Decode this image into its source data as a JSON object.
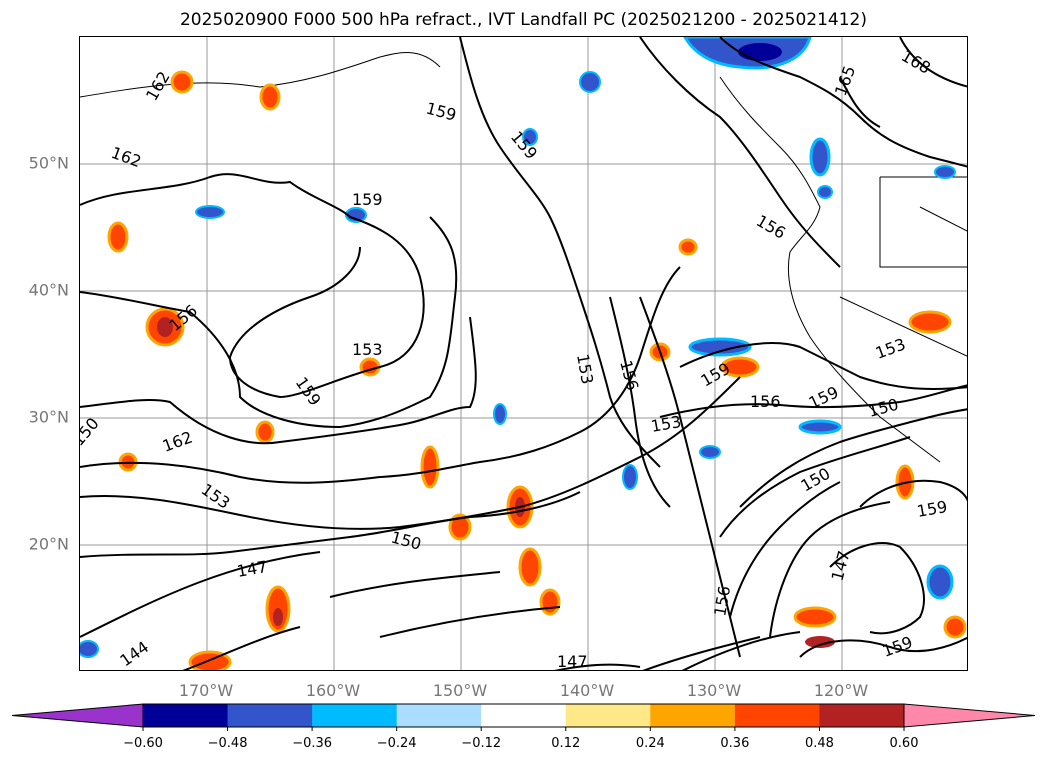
{
  "title": "2025020900 F000 500 hPa refract., IVT Landfall PC (2025021200 - 2025021412)",
  "lat_labels": [
    "50°N",
    "40°N",
    "30°N",
    "20°N"
  ],
  "lon_labels": [
    "170°W",
    "160°W",
    "150°W",
    "140°W",
    "130°W",
    "120°W"
  ],
  "contour_labels": [
    "162",
    "159",
    "159",
    "162",
    "168",
    "165",
    "159",
    "156",
    "156",
    "153",
    "153",
    "156",
    "159",
    "159",
    "150",
    "147",
    "144",
    "147",
    "150",
    "153",
    "162",
    "150",
    "156",
    "147",
    "159",
    "159",
    "153",
    "156",
    "159",
    "153",
    "150"
  ],
  "colorbar": {
    "ticks": [
      "−0.60",
      "−0.48",
      "−0.36",
      "−0.24",
      "−0.12",
      "0.12",
      "0.24",
      "0.36",
      "0.48",
      "0.60"
    ],
    "colors": [
      "#9933cc",
      "#000099",
      "#3355cc",
      "#00bbff",
      "#aaddff",
      "#ffffff",
      "#ffe888",
      "#ffa500",
      "#ff4500",
      "#b22222",
      "#ff88aa"
    ]
  }
}
